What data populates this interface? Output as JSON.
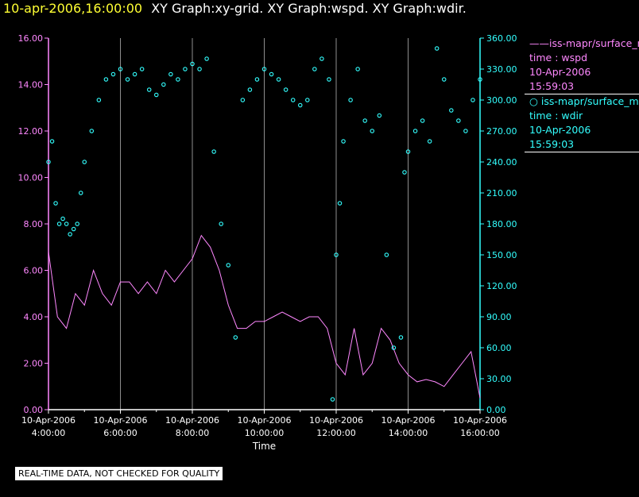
{
  "title": {
    "date": "10-apr-2006,16:00:00",
    "graphs": "XY Graph:xy-grid.  XY Graph:wspd.  XY Graph:wdir."
  },
  "legend": [
    {
      "line1": "——iss-mapr/surface_m",
      "line2": "time : wspd",
      "line3": "10-Apr-2006",
      "line4": "15:59:03",
      "color": "#ff88ff"
    },
    {
      "line1": "○ iss-mapr/surface_m",
      "line2": "time : wdir",
      "line3": "10-Apr-2006",
      "line4": "15:59:03",
      "color": "#33ffff"
    }
  ],
  "footer_note": "REAL-TIME DATA, NOT CHECKED FOR QUALITY",
  "colors": {
    "background": "#000000",
    "wspd": "#ff88ff",
    "wdir": "#33ffff",
    "grid": "#ffffff",
    "title_date": "#ffff33"
  },
  "chart_data": {
    "type": "scatter",
    "xlabel": "Time",
    "x_tick_labels": [
      [
        "10-Apr-2006",
        "4:00:00"
      ],
      [
        "10-Apr-2006",
        "6:00:00"
      ],
      [
        "10-Apr-2006",
        "8:00:00"
      ],
      [
        "10-Apr-2006",
        "10:00:00"
      ],
      [
        "10-Apr-2006",
        "12:00:00"
      ],
      [
        "10-Apr-2006",
        "14:00:00"
      ],
      [
        "10-Apr-2006",
        "16:00:00"
      ]
    ],
    "xlim_hours": [
      4.0,
      16.0
    ],
    "y_left": {
      "ticks": [
        "0.00",
        "2.00",
        "4.00",
        "6.00",
        "8.00",
        "10.00",
        "12.00",
        "14.00",
        "16.00"
      ],
      "ylim": [
        0,
        16
      ],
      "color": "#ff88ff"
    },
    "y_right": {
      "ticks": [
        "0.00",
        "30.00",
        "60.00",
        "90.00",
        "120.00",
        "150.00",
        "180.00",
        "210.00",
        "240.00",
        "270.00",
        "300.00",
        "330.00",
        "360.00"
      ],
      "ylim": [
        0,
        360
      ],
      "color": "#33ffff"
    },
    "series": [
      {
        "type": "line",
        "axis": "left",
        "x_hours": [
          4.0,
          4.25,
          4.5,
          4.75,
          5.0,
          5.25,
          5.5,
          5.75,
          6.0,
          6.25,
          6.5,
          6.75,
          7.0,
          7.25,
          7.5,
          7.75,
          8.0,
          8.25,
          8.5,
          8.75,
          9.0,
          9.25,
          9.5,
          9.75,
          10.0,
          10.25,
          10.5,
          10.75,
          11.0,
          11.25,
          11.5,
          11.75,
          12.0,
          12.25,
          12.5,
          12.75,
          13.0,
          13.25,
          13.5,
          13.75,
          14.0,
          14.25,
          14.5,
          14.75,
          15.0,
          15.25,
          15.5,
          15.75,
          16.0
        ],
        "values": [
          6.8,
          4.0,
          3.5,
          5.0,
          4.5,
          6.0,
          5.0,
          4.5,
          5.5,
          5.5,
          5.0,
          5.5,
          5.0,
          6.0,
          5.5,
          6.0,
          6.5,
          7.5,
          7.0,
          6.0,
          4.5,
          3.5,
          3.5,
          3.8,
          3.8,
          4.0,
          4.2,
          4.0,
          3.8,
          4.0,
          4.0,
          3.5,
          2.0,
          1.5,
          3.5,
          1.5,
          2.0,
          3.5,
          3.0,
          2.0,
          1.5,
          1.2,
          1.3,
          1.2,
          1.0,
          1.5,
          2.0,
          2.5,
          0.5
        ]
      },
      {
        "type": "scatter",
        "axis": "right",
        "x_hours": [
          4.0,
          4.1,
          4.2,
          4.3,
          4.4,
          4.5,
          4.6,
          4.7,
          4.8,
          4.9,
          5.0,
          5.2,
          5.4,
          5.6,
          5.8,
          6.0,
          6.2,
          6.4,
          6.6,
          6.8,
          7.0,
          7.2,
          7.4,
          7.6,
          7.8,
          8.0,
          8.2,
          8.4,
          8.6,
          8.8,
          9.0,
          9.2,
          9.4,
          9.6,
          9.8,
          10.0,
          10.2,
          10.4,
          10.6,
          10.8,
          11.0,
          11.2,
          11.4,
          11.6,
          11.8,
          11.9,
          12.0,
          12.1,
          12.2,
          12.4,
          12.6,
          12.8,
          13.0,
          13.2,
          13.4,
          13.6,
          13.8,
          13.9,
          14.0,
          14.2,
          14.4,
          14.6,
          14.8,
          15.0,
          15.2,
          15.4,
          15.6,
          15.8,
          16.0
        ],
        "values": [
          240,
          260,
          200,
          180,
          185,
          180,
          170,
          175,
          180,
          210,
          240,
          270,
          300,
          320,
          325,
          330,
          320,
          325,
          330,
          310,
          305,
          315,
          325,
          320,
          330,
          335,
          330,
          340,
          250,
          180,
          140,
          70,
          300,
          310,
          320,
          330,
          325,
          320,
          310,
          300,
          295,
          300,
          330,
          340,
          320,
          10,
          150,
          200,
          260,
          300,
          330,
          280,
          270,
          285,
          150,
          60,
          70,
          230,
          250,
          270,
          280,
          260,
          350,
          320,
          290,
          280,
          270,
          300,
          320
        ]
      }
    ]
  }
}
